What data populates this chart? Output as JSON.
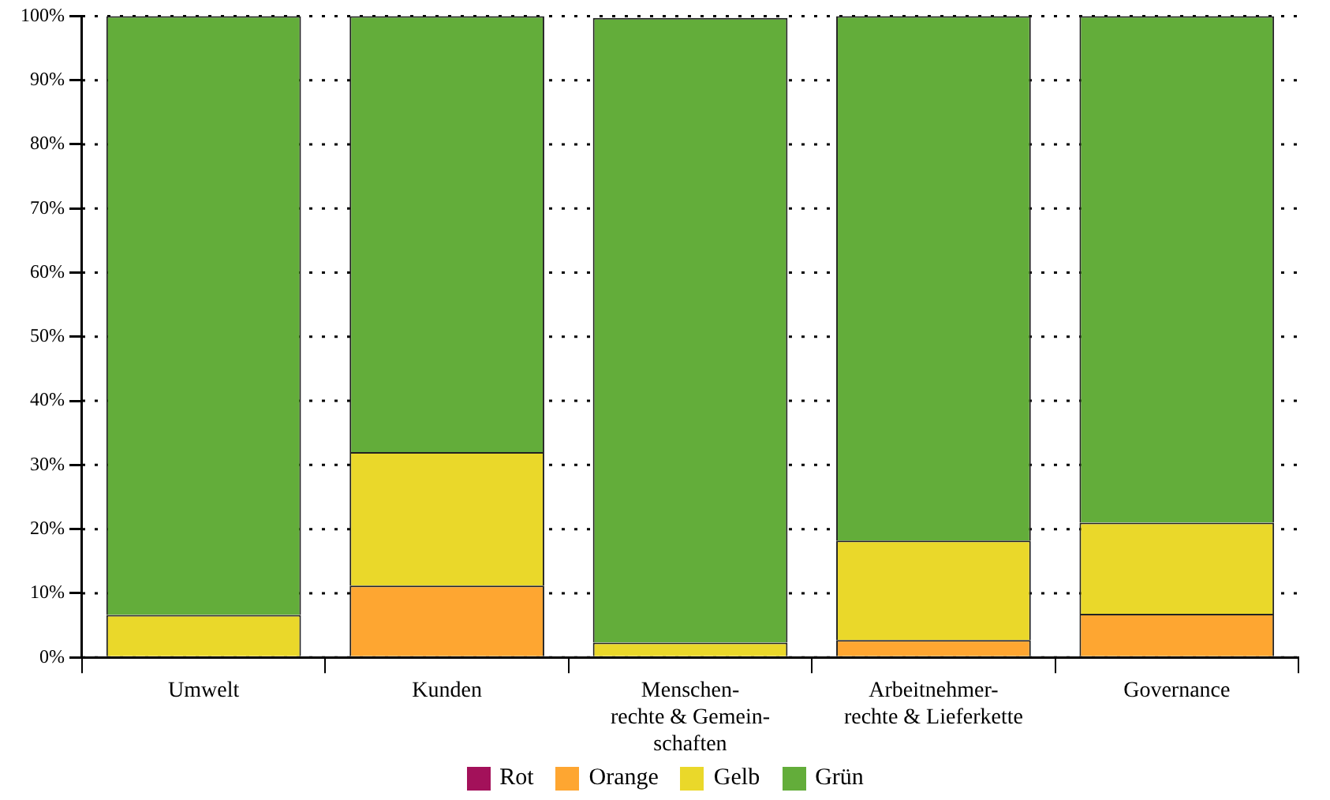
{
  "chart_data": {
    "type": "bar",
    "stacked": true,
    "categories": [
      "Umwelt",
      "Kunden",
      "Menschen-\nrechte & Gemein-\nschaften",
      "Arbeitnehmer-\nrechte & Lieferkette",
      "Governance"
    ],
    "series": [
      {
        "name": "Rot",
        "color": "#a3115a",
        "values": [
          0,
          0,
          0,
          0,
          0
        ]
      },
      {
        "name": "Orange",
        "color": "#fea631",
        "values": [
          0,
          11.2,
          null,
          2.7,
          6.8
        ]
      },
      {
        "name": "Gelb",
        "color": "#ead82a",
        "values": [
          6.6,
          20.8,
          2.3,
          15.5,
          14.2
        ]
      },
      {
        "name": "Grün",
        "color": "#63ad3a",
        "values": [
          93.4,
          68,
          97.4,
          81.8,
          79
        ]
      }
    ],
    "ylim": [
      0,
      100
    ],
    "yticks": [
      {
        "value": 0,
        "label": "0%"
      },
      {
        "value": 10,
        "label": "10%"
      },
      {
        "value": 20,
        "label": "20%"
      },
      {
        "value": 30,
        "label": "30%"
      },
      {
        "value": 40,
        "label": "40%"
      },
      {
        "value": 50,
        "label": "50%"
      },
      {
        "value": 60,
        "label": "60%"
      },
      {
        "value": 70,
        "label": "70%"
      },
      {
        "value": 80,
        "label": "80%"
      },
      {
        "value": 90,
        "label": "90%"
      },
      {
        "value": 100,
        "label": "100%"
      }
    ],
    "grid": "y",
    "legend": "bottom"
  }
}
